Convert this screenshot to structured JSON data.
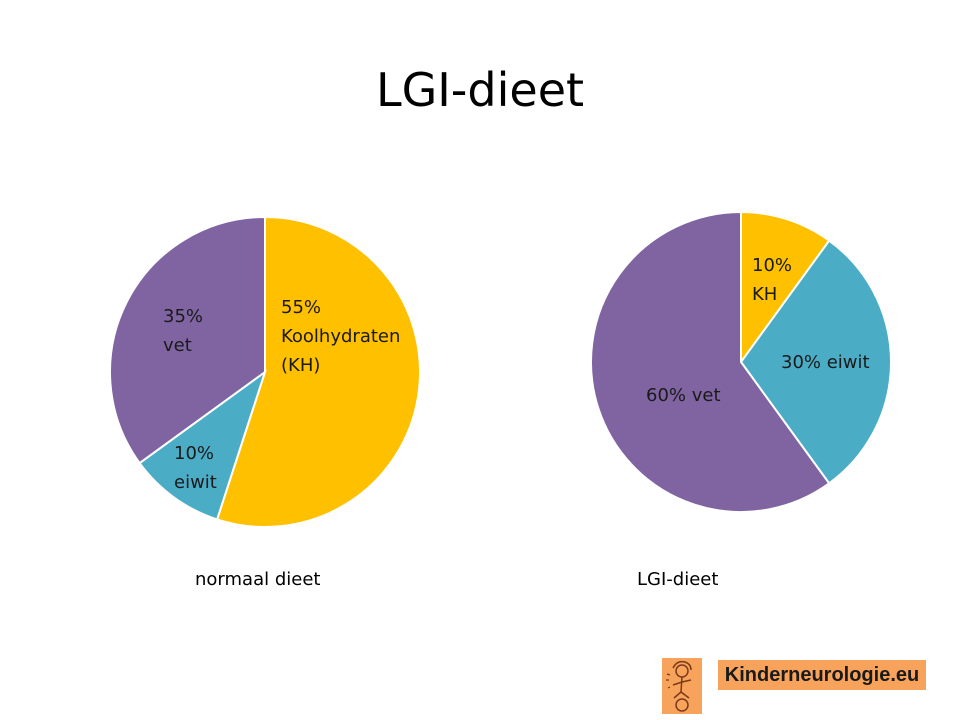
{
  "slide_title": "LGI-dieet",
  "chart_data": [
    {
      "type": "pie",
      "caption": "normaal dieet",
      "slices": [
        {
          "label": [
            "55%",
            "Koolhydraten",
            "(KH)"
          ],
          "value": 55,
          "color": "#ffc000"
        },
        {
          "label": [
            "10%",
            "eiwit"
          ],
          "value": 10,
          "color": "#4bacc6"
        },
        {
          "label": [
            "35%",
            "vet"
          ],
          "value": 35,
          "color": "#8064a2"
        }
      ]
    },
    {
      "type": "pie",
      "caption": "LGI-dieet",
      "slices": [
        {
          "label": [
            "10%",
            "KH"
          ],
          "value": 10,
          "color": "#ffc000"
        },
        {
          "label": [
            "30% eiwit"
          ],
          "value": 30,
          "color": "#4bacc6"
        },
        {
          "label": [
            "60% vet"
          ],
          "value": 60,
          "color": "#8064a2"
        }
      ]
    }
  ],
  "logo": {
    "text": "Kinderneurologie.eu",
    "icon": "child-figure-icon",
    "color": "#f7a35c"
  }
}
